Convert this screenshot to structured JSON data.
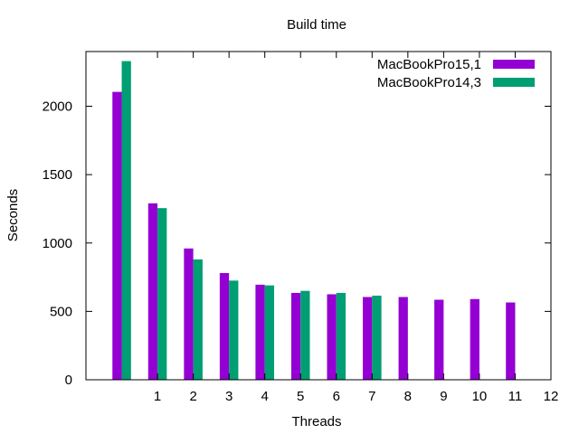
{
  "chart_data": {
    "type": "bar",
    "title": "Build time",
    "xlabel": "Threads",
    "ylabel": "Seconds",
    "x_ticks": [
      "1",
      "2",
      "3",
      "4",
      "5",
      "6",
      "7",
      "8",
      "9",
      "10",
      "11",
      "12"
    ],
    "x_tick_values": [
      1,
      2,
      3,
      4,
      5,
      6,
      7,
      8,
      9,
      10,
      11,
      12
    ],
    "xlim": [
      -1,
      12
    ],
    "y_ticks": [
      "0",
      "500",
      "1000",
      "1500",
      "2000"
    ],
    "y_tick_values": [
      0,
      500,
      1000,
      1500,
      2000
    ],
    "ylim": [
      0,
      2400
    ],
    "legend_position": "top-right",
    "grid": false,
    "x": [
      0,
      1,
      2,
      3,
      4,
      5,
      6,
      7,
      8,
      9,
      10,
      11
    ],
    "series": [
      {
        "name": "MacBookPro15,1",
        "color": "#9400d3",
        "values": [
          2105,
          1290,
          960,
          780,
          695,
          635,
          625,
          605,
          605,
          585,
          590,
          565
        ]
      },
      {
        "name": "MacBookPro14,3",
        "color": "#009e73",
        "values": [
          2330,
          1255,
          880,
          725,
          690,
          650,
          635,
          615,
          null,
          null,
          null,
          null
        ]
      }
    ]
  }
}
